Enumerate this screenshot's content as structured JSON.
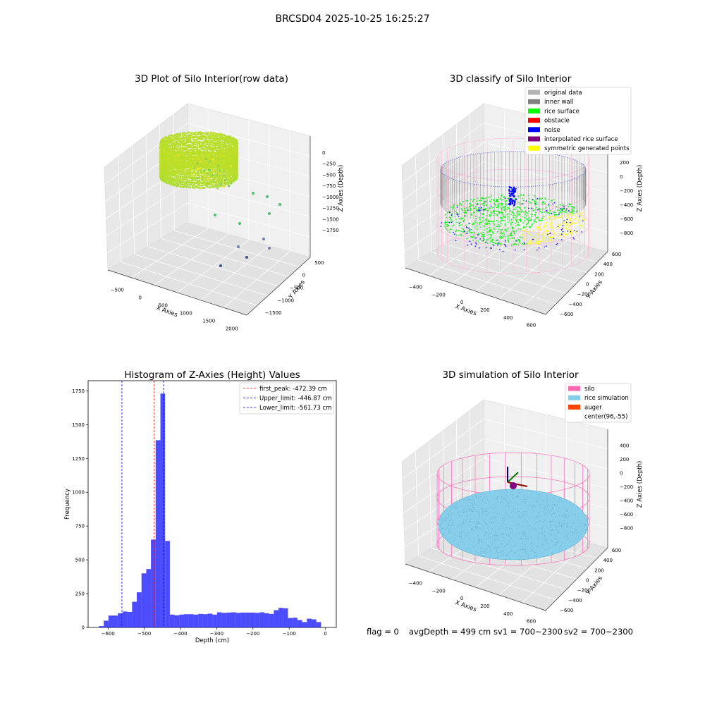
{
  "figure": {
    "suptitle": "BRCSD04 2025-10-25 16:25:27",
    "footer": {
      "flag": "flag = 0",
      "avg": "avgDepth = 499 cm",
      "sv1": "sv1 = 700~2300",
      "sv2": "sv2 = 700~2300"
    }
  },
  "panels": {
    "raw": {
      "title": "3D Plot of Silo Interior(row data)",
      "xlabel": "X Axies",
      "ylabel": "Y Axies",
      "zlabel": "Z Axies (Depth)",
      "xticks": [
        "−500",
        "0",
        "500",
        "1000",
        "1500",
        "2000"
      ],
      "yticks": [
        "500",
        "0",
        "−500",
        "−1000",
        "−1500"
      ],
      "zticks": [
        "0",
        "−250",
        "−500",
        "−750",
        "−1000",
        "−1250",
        "−1500",
        "−1750"
      ]
    },
    "classify": {
      "title": "3D classify of Silo Interior",
      "xlabel": "X Axies",
      "ylabel": "Y Axies",
      "zlabel": "Z Axies (Depth)",
      "xticks": [
        "−400",
        "−200",
        "0",
        "200",
        "400",
        "600"
      ],
      "yticks": [
        "600",
        "400",
        "200",
        "0",
        "−200",
        "−400",
        "−600"
      ],
      "zticks": [
        "200",
        "0",
        "−200",
        "−400",
        "−600",
        "−800"
      ],
      "legend": [
        {
          "label": "original data",
          "color": "#b4b4b4"
        },
        {
          "label": "inner wall",
          "color": "#808080"
        },
        {
          "label": "rice surface",
          "color": "#00ff00"
        },
        {
          "label": "obstacle",
          "color": "#ff0000"
        },
        {
          "label": "noise",
          "color": "#0000ff"
        },
        {
          "label": "interpolated rice surface",
          "color": "#800080"
        },
        {
          "label": "symmetric generated points",
          "color": "#ffff00"
        }
      ]
    },
    "simulation": {
      "title": "3D simulation of Silo Interior",
      "xlabel": "X Axies",
      "ylabel": "Y Axies",
      "zlabel": "Z Axies (Depth)",
      "xticks": [
        "−400",
        "−200",
        "0",
        "200",
        "400",
        "600"
      ],
      "yticks": [
        "600",
        "400",
        "200",
        "0",
        "−200",
        "−400",
        "−600"
      ],
      "zticks": [
        "400",
        "200",
        "0",
        "−200",
        "−400",
        "−600",
        "−800"
      ],
      "legend": [
        {
          "label": "silo",
          "color": "#ff69b4"
        },
        {
          "label": "rice simulation",
          "color": "#87ceeb"
        },
        {
          "label": "auger",
          "color": "#ff4500"
        },
        {
          "label": "center(96,-55)",
          "color": "#ffffff"
        }
      ]
    }
  },
  "chart_data": {
    "type": "bar",
    "title": "Histogram of Z-Axies (Height) Values",
    "xlabel": "Depth (cm)",
    "ylabel": "Frequency",
    "xlim": [
      -655,
      30
    ],
    "ylim": [
      0,
      1825
    ],
    "xticks": [
      -600,
      -500,
      -400,
      -300,
      -200,
      -100,
      0
    ],
    "yticks": [
      0,
      250,
      500,
      750,
      1000,
      1250,
      1500,
      1750
    ],
    "bin_edges": [
      -625,
      -611.96,
      -598.92,
      -585.88,
      -572.84,
      -559.8,
      -546.76,
      -533.72,
      -520.68,
      -507.64,
      -494.6,
      -481.56,
      -468.52,
      -455.48,
      -442.44,
      -429.4,
      -416.36,
      -403.32,
      -390.28,
      -377.24,
      -364.2,
      -351.16,
      -338.12,
      -325.08,
      -312.04,
      -299,
      -285.96,
      -272.92,
      -259.88,
      -246.84,
      -233.8,
      -220.76,
      -207.72,
      -194.68,
      -181.64,
      -168.6,
      -155.56,
      -142.52,
      -129.48,
      -116.44,
      -103.4,
      -90.36,
      -77.32,
      -64.28,
      -51.24,
      -38.2,
      -25.16,
      -12.12,
      0.92
    ],
    "values": [
      10,
      50,
      88,
      88,
      105,
      118,
      115,
      190,
      260,
      400,
      432,
      650,
      1385,
      1730,
      640,
      95,
      90,
      95,
      98,
      98,
      95,
      100,
      98,
      102,
      95,
      112,
      108,
      110,
      112,
      108,
      110,
      110,
      110,
      108,
      112,
      105,
      100,
      128,
      145,
      142,
      70,
      72,
      55,
      40,
      65,
      60,
      40,
      0
    ],
    "color": "#0000ff",
    "vlines": [
      {
        "label": "first_peak: -472.39 cm",
        "x": -472.39,
        "color": "#ff0000"
      },
      {
        "label": "Upper_limit: -446.87 cm",
        "x": -446.87,
        "color": "#0000ff"
      },
      {
        "label": "Lower_limit: -561.73 cm",
        "x": -561.73,
        "color": "#0000ff"
      }
    ],
    "grid": false,
    "legend_position": "top-right"
  }
}
